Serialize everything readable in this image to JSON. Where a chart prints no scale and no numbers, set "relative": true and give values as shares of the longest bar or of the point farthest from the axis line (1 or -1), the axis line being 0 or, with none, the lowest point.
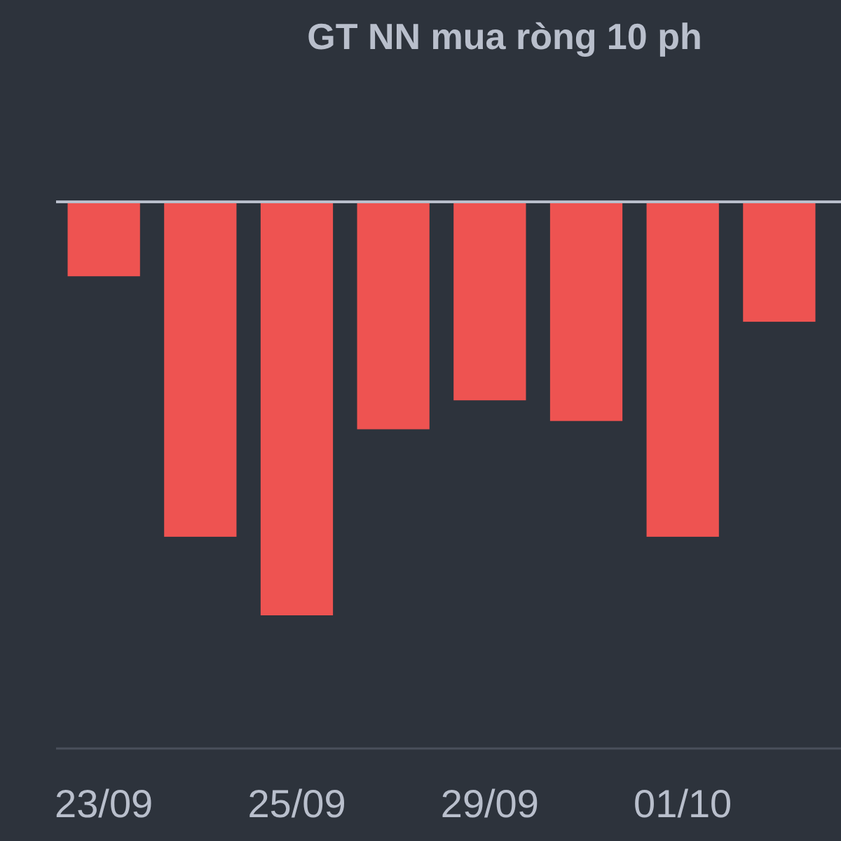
{
  "chart_data": {
    "type": "bar",
    "title": "GT NN mua ròng 10 ph",
    "relative": true,
    "color": "#ee5351",
    "categories": [
      "23/09",
      null,
      "25/09",
      null,
      "29/09",
      null,
      "01/10",
      null
    ],
    "values": [
      -0.18,
      -0.81,
      -1,
      -0.55,
      -0.48,
      -0.53,
      -0.81,
      -0.29
    ]
  }
}
